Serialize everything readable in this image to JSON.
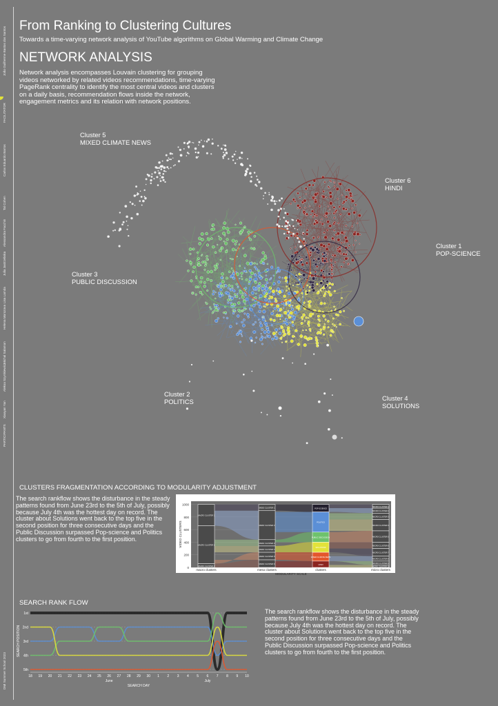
{
  "header": {
    "title": "From Ranking to Clustering Cultures",
    "subtitle": "Towards a time-varying network analysis of YouTube algorithms on Global Warming and Climate Change"
  },
  "network_section": {
    "heading": "NETWORK ANALYSIS",
    "intro": "Network analysis encompasses Louvain clustering for grouping videos networked by related videos recommendations, time-varying PageRank centrality to identify the most central videos and clusters on a daily basis, recommendation flows inside the network, engagement metrics and its relation with network positions.",
    "clusters": [
      {
        "id": "Cluster 5",
        "name": "MIXED CLIMATE NEWS",
        "color": "#e4562c"
      },
      {
        "id": "Cluster 6",
        "name": "HINDI",
        "color": "#8b2420"
      },
      {
        "id": "Cluster 1",
        "name": "POP-SCIENCE",
        "color": "#2f2540"
      },
      {
        "id": "Cluster 3",
        "name": "PUBLIC DISCUSSION",
        "color": "#6ec26c"
      },
      {
        "id": "Cluster 2",
        "name": "POLITICS",
        "color": "#5b8fd6"
      },
      {
        "id": "Cluster 4",
        "name": "SOLUTIONS",
        "color": "#e2e23a"
      }
    ]
  },
  "fragmentation_section": {
    "heading": "CLUSTERS FRAGMENTATION ACCORDING TO MODULARITY ADJUSTMENT",
    "text": "The search rankflow shows the disturbance in the steady patterns found from June 23rd to the 5th of July, possibly because July 4th was the hottest day on record. The cluster about Solutions went back to the top five in the second position for three consecutive days and the Public Discussion surpassed Pop-science and Politics clusters to go from fourth to the first position."
  },
  "rank_section": {
    "heading": "SEARCH RANK FLOW",
    "text": "The search rankflow shows the disturbance in the steady patterns found from June 23rd to the 5th of July, possibly because July 4th was the hottest day on record. The cluster about Solutions went back to the top five in the second position for three consecutive days and the Public Discussion surpassed Pop-science and Politics clusters to go from fourth to the first position."
  },
  "sidebar": {
    "credits": [
      "João Guilherme Bastos dos Santos",
      "FACILITATOR",
      "Carlos Eduardo Barros",
      "Tal Cohen",
      "Alessandra Facchin",
      "Julia Jastrzebska",
      "Lisa Lamda",
      "Helena Morozova",
      "Michal Salamon",
      "Aleksa Szymkiewicz",
      "Xiaoyan Yan",
      "PARTICIPANTS",
      "DMI Summer School 2023"
    ]
  },
  "chart_data": [
    {
      "type": "alluvial",
      "ylabel": "VIDEO CLUSTERS",
      "xlabel": "MODULARITY SCALE",
      "yticks": [
        0,
        200,
        400,
        600,
        800,
        1000
      ],
      "ylim": [
        0,
        1050
      ],
      "stages": [
        "macro clusters",
        "meso clusters",
        "clusters",
        "micro clusters"
      ],
      "stage_blocks": [
        {
          "stage": "macro clusters",
          "blocks": [
            {
              "label": "MACRO CLUSTER 1",
              "from": 660,
              "to": 1000
            },
            {
              "label": "MACRO CLUSTER 2",
              "from": 60,
              "to": 660
            },
            {
              "label": "MACRO CLUSTER 3",
              "from": 0,
              "to": 60
            }
          ]
        },
        {
          "stage": "meso clusters",
          "blocks": [
            {
              "label": "MESO CLUSTER 1",
              "from": 900,
              "to": 1000
            },
            {
              "label": "MESO CLUSTER 2",
              "from": 440,
              "to": 900
            },
            {
              "label": "MESO CLUSTER 3",
              "from": 340,
              "to": 440
            },
            {
              "label": "MESO CLUSTER 4",
              "from": 240,
              "to": 340
            },
            {
              "label": "MESO CLUSTER 5",
              "from": 120,
              "to": 240
            },
            {
              "label": "MESO CLUSTER 6",
              "from": 0,
              "to": 120
            }
          ]
        },
        {
          "stage": "clusters",
          "blocks": [
            {
              "label": "POP-SCIENCE",
              "color": "#231f2d",
              "from": 880,
              "to": 1000
            },
            {
              "label": "POLITICS",
              "color": "#5b8fd6",
              "from": 560,
              "to": 880
            },
            {
              "label": "PUBLIC DISCUSSION",
              "color": "#6ec26c",
              "from": 400,
              "to": 560
            },
            {
              "label": "SOLUTIONS",
              "color": "#e2e23a",
              "from": 240,
              "to": 400
            },
            {
              "label": "MIXED CLIMATE NEWS",
              "color": "#e4562c",
              "from": 100,
              "to": 240
            },
            {
              "label": "HINDI",
              "color": "#8b2420",
              "from": 0,
              "to": 100
            }
          ]
        },
        {
          "stage": "micro clusters",
          "blocks": [
            {
              "label": "MICRO CLUSTER 1",
              "from": 940,
              "to": 1000
            },
            {
              "label": "MICRO CLUSTER 2",
              "from": 860,
              "to": 940
            },
            {
              "label": "MICRO CLUSTER 3",
              "from": 760,
              "to": 860
            },
            {
              "label": "MICRO CLUSTER 4",
              "from": 580,
              "to": 760
            },
            {
              "label": "MICRO CLUSTER 5",
              "from": 400,
              "to": 580
            },
            {
              "label": "MICRO CLUSTER 6",
              "from": 300,
              "to": 400
            },
            {
              "label": "MICRO CLUSTER 7",
              "from": 180,
              "to": 300
            },
            {
              "label": "MICRO CLUSTER 8",
              "from": 100,
              "to": 180
            },
            {
              "label": "MICRO CLUSTER 9",
              "from": 40,
              "to": 100
            },
            {
              "label": "MICRO CLUSTER 10",
              "from": 0,
              "to": 40
            }
          ]
        }
      ]
    },
    {
      "type": "line",
      "ylabel": "SEARCH POSITION",
      "xlabel": "SEARCH DAY",
      "y_ticks": [
        "1st",
        "2nd",
        "3rd",
        "4th",
        "5th"
      ],
      "x": [
        "18",
        "19",
        "20",
        "21",
        "22",
        "23",
        "24",
        "25",
        "26",
        "27",
        "28",
        "29",
        "30",
        "1",
        "2",
        "3",
        "4",
        "5",
        "6",
        "7",
        "8",
        "9",
        "10"
      ],
      "month_labels": [
        {
          "label": "June",
          "at": "26"
        },
        {
          "label": "July",
          "at": "6"
        }
      ],
      "series": [
        {
          "color": "#222222",
          "values": [
            1,
            1,
            1,
            1,
            1,
            1,
            1,
            1,
            1,
            1,
            1,
            1,
            1,
            1,
            1,
            1,
            1,
            1,
            1,
            5,
            1,
            1,
            1
          ]
        },
        {
          "color": "#5b8fd6",
          "values": [
            3,
            3,
            3,
            2,
            2,
            2,
            2,
            3,
            3,
            3,
            2,
            2,
            2,
            2,
            2,
            2,
            2,
            2,
            2,
            4,
            3,
            3,
            3
          ]
        },
        {
          "color": "#6ec26c",
          "values": [
            4,
            4,
            4,
            3,
            3,
            3,
            3,
            2,
            2,
            2,
            3,
            3,
            3,
            3,
            3,
            3,
            3,
            3,
            3,
            1,
            2,
            2,
            2
          ]
        },
        {
          "color": "#e2e23a",
          "values": [
            2,
            2,
            2,
            4,
            4,
            4,
            4,
            4,
            4,
            4,
            4,
            4,
            4,
            4,
            4,
            4,
            4,
            4,
            4,
            2,
            4,
            4,
            4
          ]
        },
        {
          "color": "#e4562c",
          "values": [
            5,
            5,
            5,
            5,
            5,
            5,
            5,
            5,
            5,
            5,
            5,
            5,
            5,
            5,
            5,
            5,
            5,
            5,
            5,
            3,
            5,
            5,
            5
          ]
        }
      ]
    }
  ]
}
